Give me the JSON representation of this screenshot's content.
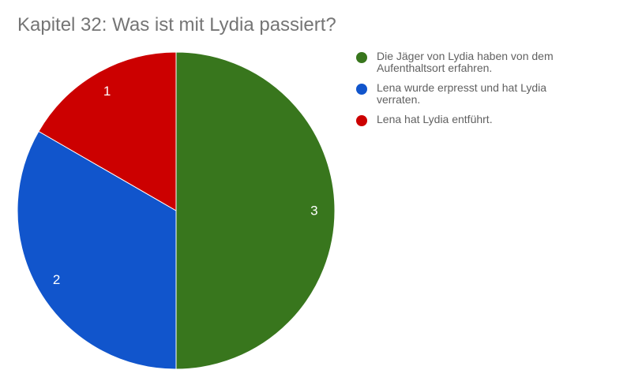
{
  "chart_data": {
    "type": "pie",
    "title": "Kapitel 32: Was ist mit Lydia passiert?",
    "slices": [
      {
        "label": "Die Jäger von Lydia haben von dem Aufenthaltsort erfahren.",
        "value": 3,
        "color": "#38761d"
      },
      {
        "label": "Lena wurde erpresst und hat Lydia verraten.",
        "value": 2,
        "color": "#1155cc"
      },
      {
        "label": "Lena hat Lydia entführt.",
        "value": 1,
        "color": "#cc0000"
      }
    ],
    "legend_position": "right"
  }
}
